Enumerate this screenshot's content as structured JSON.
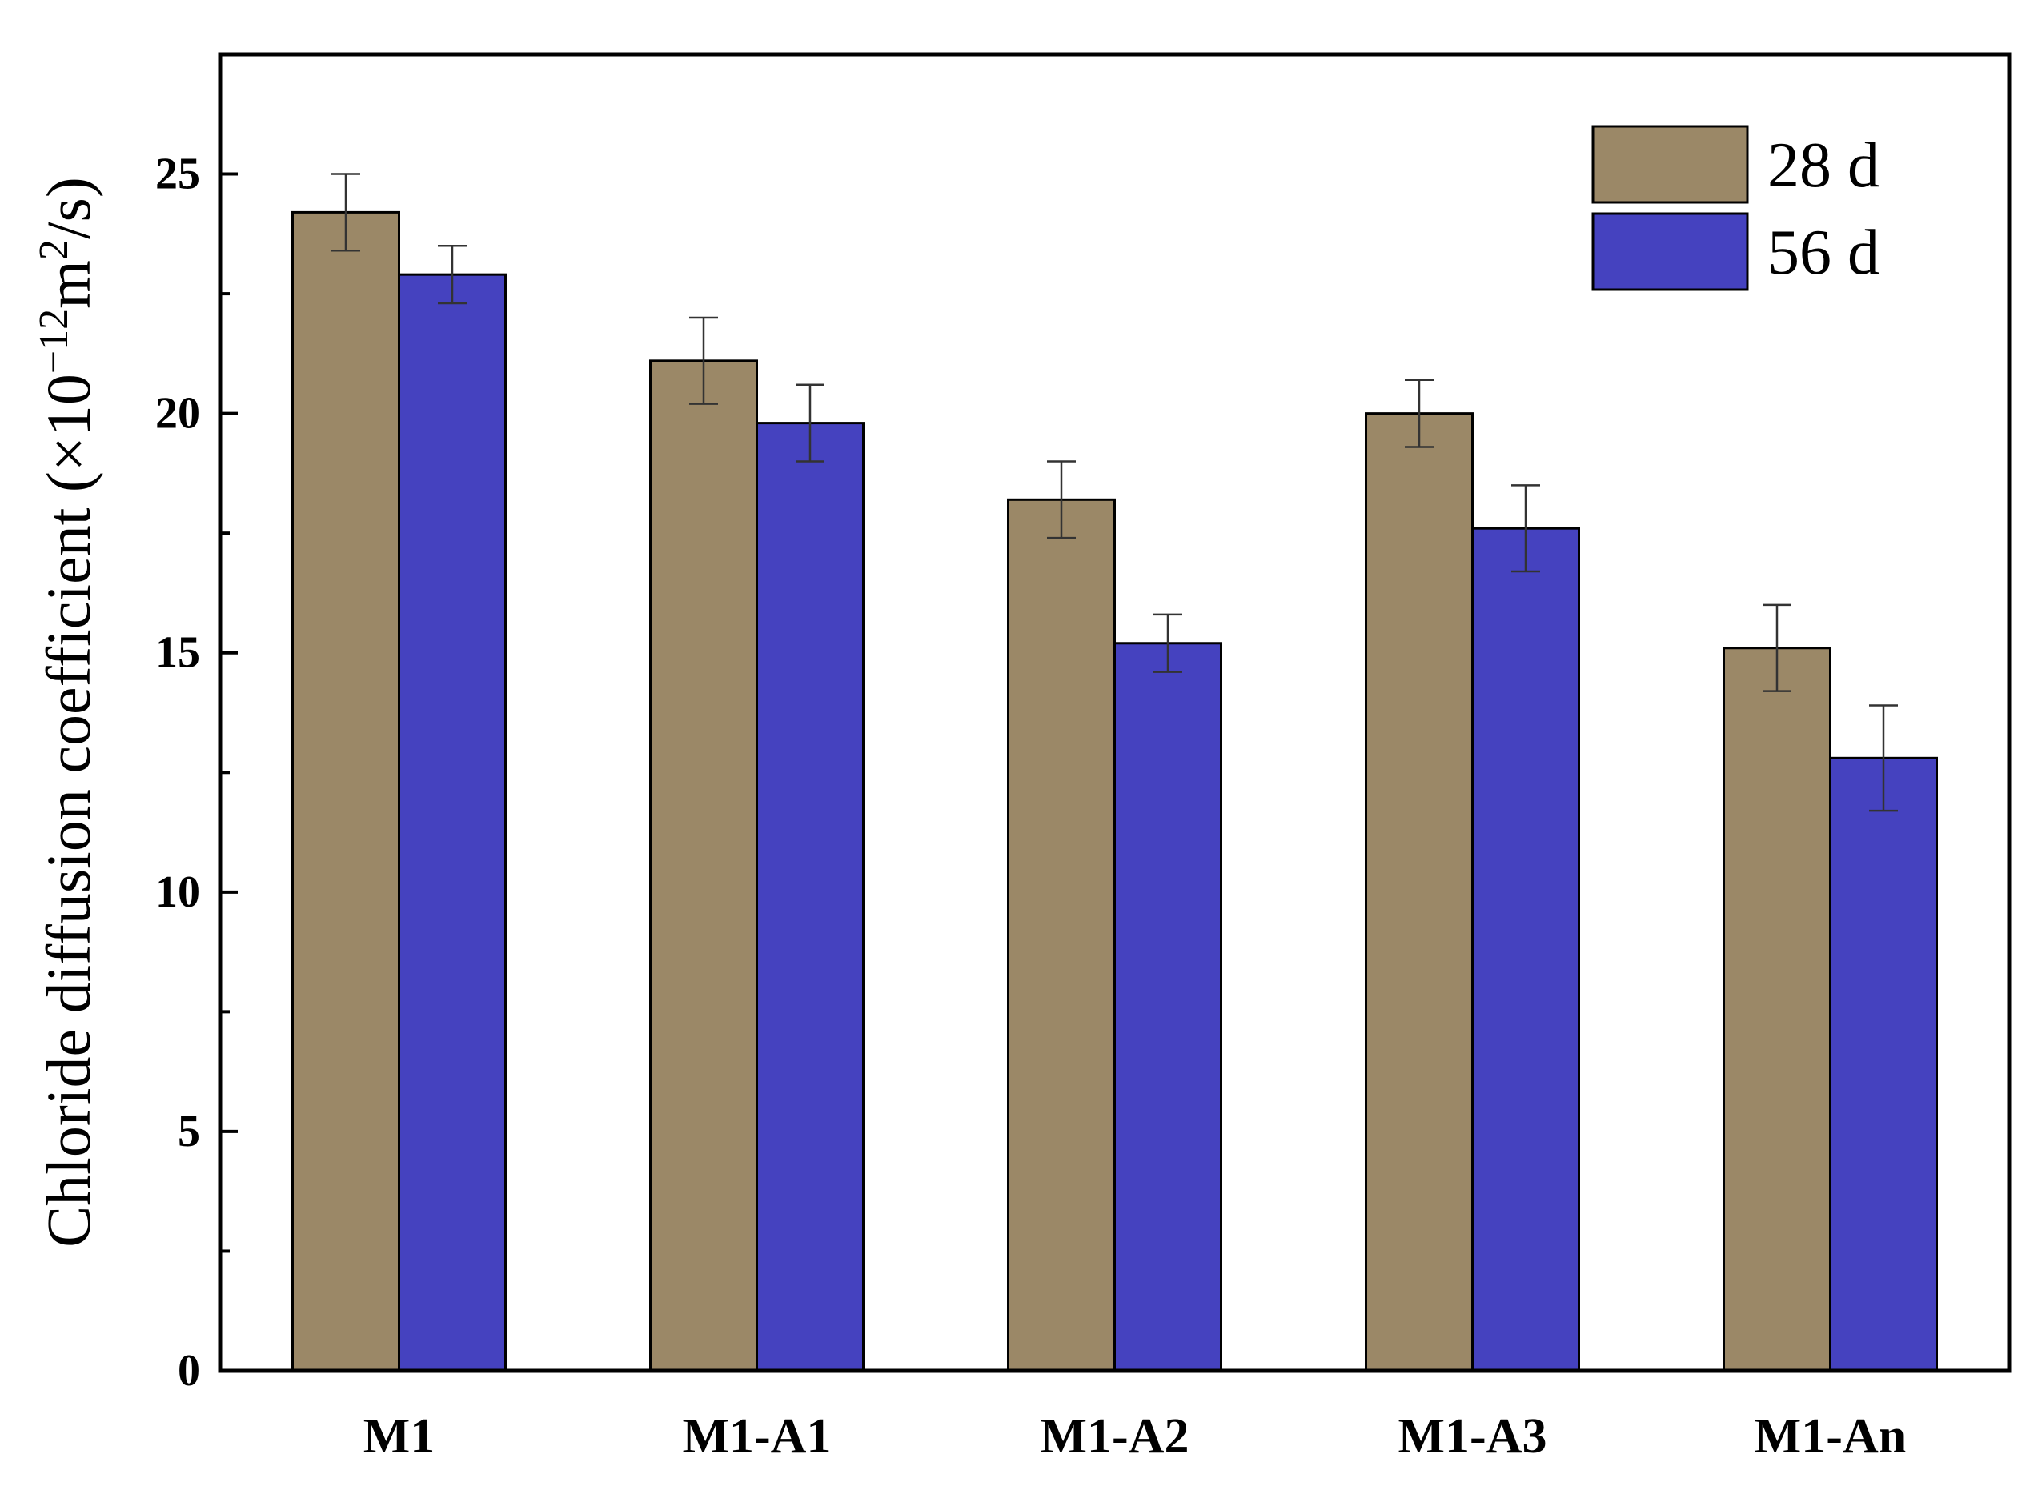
{
  "chart_data": {
    "type": "bar",
    "categories": [
      "M1",
      "M1-A1",
      "M1-A2",
      "M1-A3",
      "M1-An"
    ],
    "series": [
      {
        "name": "28 d",
        "color": "#9b8867",
        "values": [
          24.2,
          21.1,
          18.2,
          20.0,
          15.1
        ],
        "errors": [
          0.8,
          0.9,
          0.8,
          0.7,
          0.9
        ]
      },
      {
        "name": "56 d",
        "color": "#4542bf",
        "values": [
          22.9,
          19.8,
          15.2,
          17.6,
          12.8
        ],
        "errors": [
          0.6,
          0.8,
          0.6,
          0.9,
          1.1
        ]
      }
    ],
    "ylabel_main": "Chloride diffusion coefficient (×10",
    "ylabel_exp": "−12",
    "ylabel_unit": "m",
    "ylabel_unit_exp": "2",
    "ylabel_tail": "/s)",
    "xlabel": "",
    "ylim": [
      0,
      27.5
    ],
    "yticks": [
      0,
      5,
      10,
      15,
      20,
      25
    ],
    "legend_position": "top-right",
    "grid": false
  }
}
